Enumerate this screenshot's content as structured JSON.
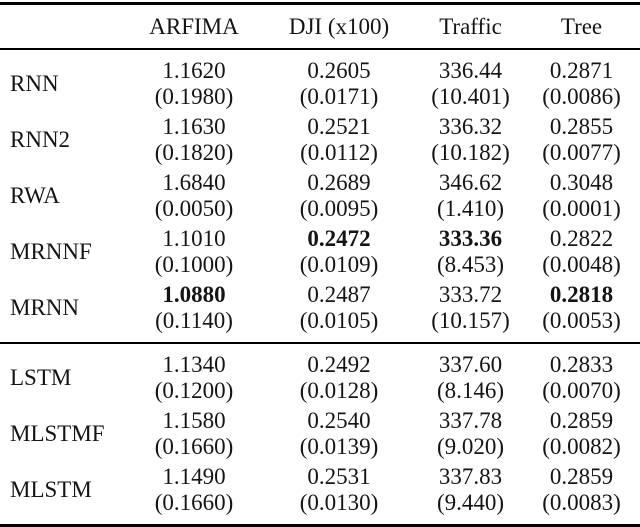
{
  "page": {
    "background_color": "#ffffff",
    "text_color": "#141414",
    "rule_color": "#000000"
  },
  "table": {
    "columns": [
      "",
      "ARFIMA",
      "DJI (x100)",
      "Traffic",
      "Tree"
    ],
    "groups": [
      {
        "rows": [
          {
            "label": "RNN",
            "cells": [
              {
                "value": "1.1620",
                "std": "(0.1980)",
                "bold": false
              },
              {
                "value": "0.2605",
                "std": "(0.0171)",
                "bold": false
              },
              {
                "value": "336.44",
                "std": "(10.401)",
                "bold": false
              },
              {
                "value": "0.2871",
                "std": "(0.0086)",
                "bold": false
              }
            ]
          },
          {
            "label": "RNN2",
            "cells": [
              {
                "value": "1.1630",
                "std": "(0.1820)",
                "bold": false
              },
              {
                "value": "0.2521",
                "std": "(0.0112)",
                "bold": false
              },
              {
                "value": "336.32",
                "std": "(10.182)",
                "bold": false
              },
              {
                "value": "0.2855",
                "std": "(0.0077)",
                "bold": false
              }
            ]
          },
          {
            "label": "RWA",
            "cells": [
              {
                "value": "1.6840",
                "std": "(0.0050)",
                "bold": false
              },
              {
                "value": "0.2689",
                "std": "(0.0095)",
                "bold": false
              },
              {
                "value": "346.62",
                "std": "(1.410)",
                "bold": false
              },
              {
                "value": "0.3048",
                "std": "(0.0001)",
                "bold": false
              }
            ]
          },
          {
            "label": "MRNNF",
            "cells": [
              {
                "value": "1.1010",
                "std": "(0.1000)",
                "bold": false
              },
              {
                "value": "0.2472",
                "std": "(0.0109)",
                "bold": true
              },
              {
                "value": "333.36",
                "std": "(8.453)",
                "bold": true
              },
              {
                "value": "0.2822",
                "std": "(0.0048)",
                "bold": false
              }
            ]
          },
          {
            "label": "MRNN",
            "cells": [
              {
                "value": "1.0880",
                "std": "(0.1140)",
                "bold": true
              },
              {
                "value": "0.2487",
                "std": "(0.0105)",
                "bold": false
              },
              {
                "value": "333.72",
                "std": "(10.157)",
                "bold": false
              },
              {
                "value": "0.2818",
                "std": "(0.0053)",
                "bold": true
              }
            ]
          }
        ]
      },
      {
        "rows": [
          {
            "label": "LSTM",
            "cells": [
              {
                "value": "1.1340",
                "std": "(0.1200)",
                "bold": false
              },
              {
                "value": "0.2492",
                "std": "(0.0128)",
                "bold": false
              },
              {
                "value": "337.60",
                "std": "(8.146)",
                "bold": false
              },
              {
                "value": "0.2833",
                "std": "(0.0070)",
                "bold": false
              }
            ]
          },
          {
            "label": "MLSTMF",
            "cells": [
              {
                "value": "1.1580",
                "std": "(0.1660)",
                "bold": false
              },
              {
                "value": "0.2540",
                "std": "(0.0139)",
                "bold": false
              },
              {
                "value": "337.78",
                "std": "(9.020)",
                "bold": false
              },
              {
                "value": "0.2859",
                "std": "(0.0082)",
                "bold": false
              }
            ]
          },
          {
            "label": "MLSTM",
            "cells": [
              {
                "value": "1.1490",
                "std": "(0.1660)",
                "bold": false
              },
              {
                "value": "0.2531",
                "std": "(0.0130)",
                "bold": false
              },
              {
                "value": "337.83",
                "std": "(9.440)",
                "bold": false
              },
              {
                "value": "0.2859",
                "std": "(0.0083)",
                "bold": false
              }
            ]
          }
        ]
      }
    ]
  }
}
